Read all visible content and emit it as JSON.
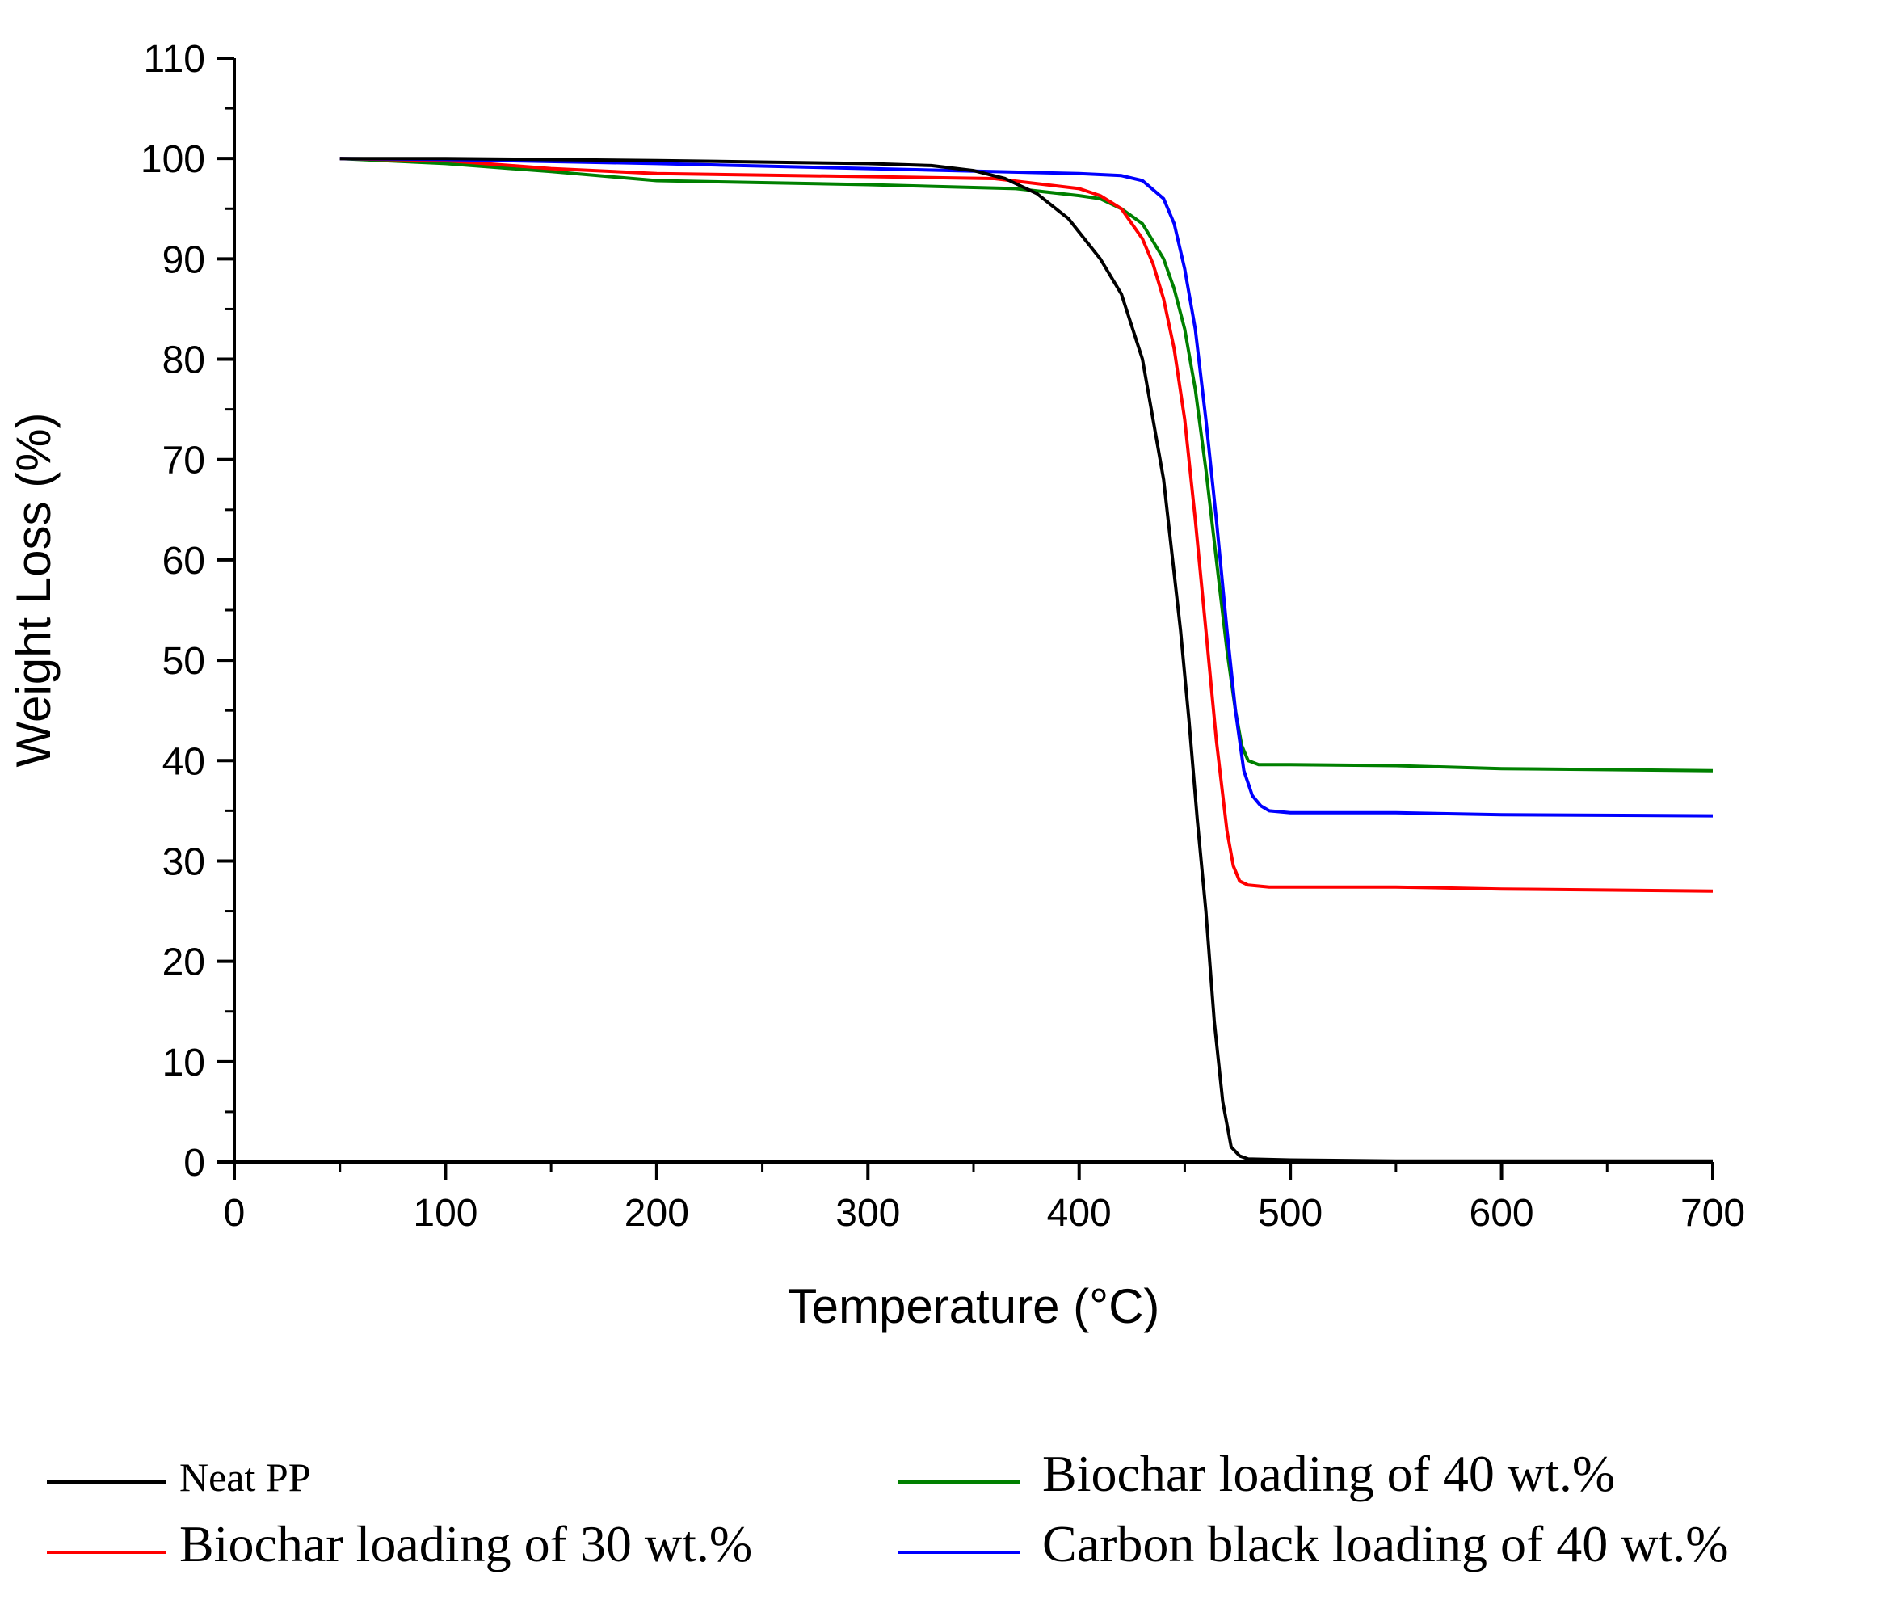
{
  "chart_data": {
    "type": "line",
    "title": "",
    "xlabel": "Temperature (°C)",
    "ylabel": "Weight Loss (%)",
    "xlim": [
      0,
      700
    ],
    "ylim": [
      0,
      110
    ],
    "xticks": [
      "0",
      "100",
      "200",
      "300",
      "400",
      "500",
      "600",
      "700"
    ],
    "yticks": [
      "0",
      "10",
      "20",
      "30",
      "40",
      "50",
      "60",
      "70",
      "80",
      "90",
      "100",
      "110"
    ],
    "grid": false,
    "legend_position": "bottom",
    "series": [
      {
        "name": "Neat PP",
        "color": "#000000",
        "x": [
          50,
          100,
          200,
          300,
          330,
          350,
          365,
          380,
          395,
          410,
          420,
          430,
          440,
          448,
          452,
          456,
          460,
          464,
          468,
          472,
          476,
          480,
          500,
          550,
          700
        ],
        "y": [
          100,
          100,
          99.8,
          99.5,
          99.3,
          98.8,
          98.0,
          96.5,
          94.0,
          90.0,
          86.5,
          80.0,
          68.0,
          53.0,
          44.0,
          34.0,
          25.0,
          14.0,
          6.0,
          1.5,
          0.6,
          0.3,
          0.2,
          0.1,
          0.1
        ]
      },
      {
        "name": "Biochar loading of 30 wt.%",
        "color": "#ff0000",
        "x": [
          50,
          100,
          150,
          200,
          300,
          360,
          400,
          410,
          420,
          430,
          435,
          440,
          445,
          450,
          455,
          460,
          465,
          470,
          473,
          476,
          480,
          490,
          500,
          550,
          600,
          700
        ],
        "y": [
          100,
          99.8,
          99.0,
          98.5,
          98.2,
          98.0,
          97.0,
          96.3,
          95.0,
          92.0,
          89.5,
          86.0,
          81.0,
          74.0,
          64.0,
          53.0,
          42.0,
          33.0,
          29.5,
          28.0,
          27.6,
          27.4,
          27.4,
          27.4,
          27.2,
          27.0
        ]
      },
      {
        "name": "Biochar loading of 40 wt.%",
        "color": "#008000",
        "x": [
          50,
          100,
          150,
          200,
          300,
          370,
          400,
          410,
          420,
          430,
          440,
          445,
          450,
          455,
          460,
          465,
          470,
          474,
          477,
          480,
          485,
          500,
          550,
          600,
          700
        ],
        "y": [
          100,
          99.5,
          98.7,
          97.8,
          97.4,
          97.0,
          96.3,
          96.0,
          95.0,
          93.5,
          90.0,
          87.0,
          83.0,
          77.0,
          69.0,
          60.0,
          51.0,
          45.0,
          41.5,
          40.0,
          39.6,
          39.6,
          39.5,
          39.2,
          39.0
        ]
      },
      {
        "name": "Carbon black loading of 40 wt.%",
        "color": "#0000ff",
        "x": [
          50,
          100,
          200,
          300,
          400,
          420,
          430,
          440,
          445,
          450,
          455,
          460,
          465,
          470,
          474,
          478,
          482,
          486,
          490,
          500,
          550,
          600,
          700
        ],
        "y": [
          100,
          99.9,
          99.5,
          99.0,
          98.5,
          98.3,
          97.8,
          96.0,
          93.5,
          89.0,
          83.0,
          74.0,
          64.0,
          53.0,
          45.0,
          39.0,
          36.5,
          35.5,
          35.0,
          34.8,
          34.8,
          34.6,
          34.5
        ]
      }
    ]
  }
}
